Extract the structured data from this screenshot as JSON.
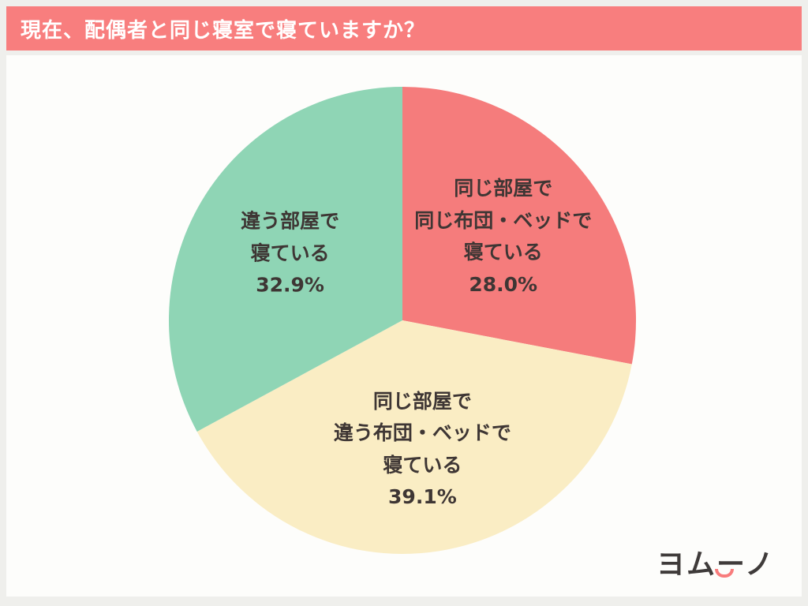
{
  "header": {
    "title": "現在、配偶者と同じ寝室で寝ていますか？",
    "bg_color": "#F87E7E",
    "text_color": "#FFFFFF"
  },
  "chart_data": {
    "type": "pie",
    "title": "現在、配偶者と同じ寝室で寝ていますか？",
    "start_angle_deg": 0,
    "direction": "clockwise",
    "label_color": "#3E3634",
    "legend_position": "none",
    "slices": [
      {
        "label": "同じ部屋で同じ布団・ベッドで寝ている",
        "value": 28.0,
        "percent_text": "28.0%",
        "color": "#F57C7C",
        "label_lines": [
          "同じ部屋で",
          "同じ布団・ベッドで",
          "寝ている",
          "28.0%"
        ]
      },
      {
        "label": "同じ部屋で違う布団・ベッドで寝ている",
        "value": 39.1,
        "percent_text": "39.1%",
        "color": "#FAEDC4",
        "label_lines": [
          "同じ部屋で",
          "違う布団・ベッドで",
          "寝ている",
          "39.1%"
        ]
      },
      {
        "label": "違う部屋で寝ている",
        "value": 32.9,
        "percent_text": "32.9%",
        "color": "#8FD5B5",
        "label_lines": [
          "違う部屋で",
          "寝ている",
          "32.9%"
        ]
      }
    ]
  },
  "logo": {
    "text": "ヨムーノ",
    "text_color": "#3F3B3A",
    "accent_color": "#F87C7C"
  }
}
